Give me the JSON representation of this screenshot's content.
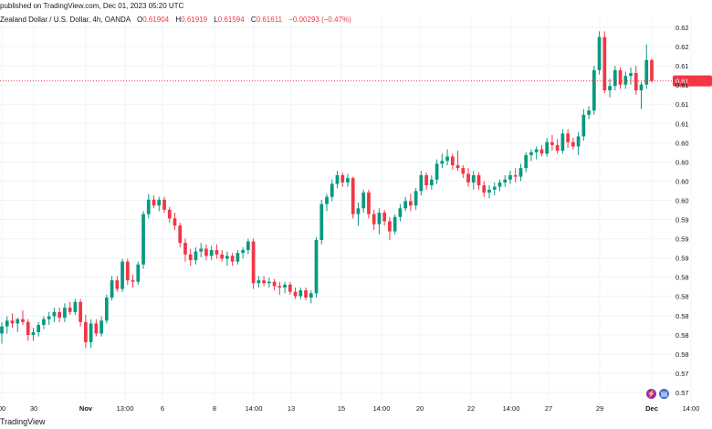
{
  "header": {
    "published": "published on TradingView.com, Dec 01, 2023 05:20 UTC",
    "symbol": "Zealand Dollar / U.S. Dollar, 4h, OANDA",
    "o_label": "O",
    "o_value": "0.61904",
    "h_label": "H",
    "h_value": "0.61919",
    "l_label": "L",
    "l_value": "0.61594",
    "c_label": "C",
    "c_value": "0.61611",
    "change": "−0.00293 (−0.47%)"
  },
  "footer": {
    "brand": "TradingView"
  },
  "colors": {
    "up": "#089981",
    "down": "#f23645",
    "grid": "#f0f3fa",
    "text": "#131722",
    "axis_text": "#131722",
    "price_line": "#f23645"
  },
  "chart_data": {
    "type": "candlestick",
    "title": "Zealand Dollar / U.S. Dollar, 4h, OANDA",
    "y_tick_labels": [
      "0.62",
      "0.62",
      "0.61",
      "0.61",
      "0.61",
      "0.61",
      "0.60",
      "0.60",
      "0.60",
      "0.60",
      "0.59",
      "0.59",
      "0.59",
      "0.58",
      "0.58",
      "0.58",
      "0.58",
      "0.58",
      "0.57",
      "0.57"
    ],
    "ylim": [
      0.5718,
      0.6238
    ],
    "x_tick_labels": [
      "00",
      "30",
      "Nov",
      "13:00",
      "6",
      "8",
      "14:00",
      "13",
      "15",
      "14:00",
      "20",
      "22",
      "14:00",
      "27",
      "29",
      "Dec",
      "14:00"
    ],
    "last_price_label": "0.61",
    "last_price": 0.61611,
    "grid": true,
    "ohlc": [
      [
        0.581,
        0.5826,
        0.5796,
        0.582
      ],
      [
        0.582,
        0.5834,
        0.581,
        0.5828
      ],
      [
        0.5828,
        0.5838,
        0.5818,
        0.5824
      ],
      [
        0.5824,
        0.5832,
        0.5812,
        0.583
      ],
      [
        0.583,
        0.5842,
        0.5822,
        0.5826
      ],
      [
        0.5826,
        0.583,
        0.58,
        0.5808
      ],
      [
        0.5808,
        0.5818,
        0.58,
        0.5812
      ],
      [
        0.5812,
        0.5826,
        0.5806,
        0.5822
      ],
      [
        0.5822,
        0.5834,
        0.5816,
        0.583
      ],
      [
        0.583,
        0.584,
        0.5822,
        0.5834
      ],
      [
        0.5834,
        0.5846,
        0.5826,
        0.584
      ],
      [
        0.584,
        0.5846,
        0.5826,
        0.5832
      ],
      [
        0.5832,
        0.5852,
        0.5826,
        0.5846
      ],
      [
        0.5846,
        0.5854,
        0.5836,
        0.584
      ],
      [
        0.584,
        0.5858,
        0.5836,
        0.5854
      ],
      [
        0.5854,
        0.5858,
        0.582,
        0.5826
      ],
      [
        0.5826,
        0.5836,
        0.579,
        0.5798
      ],
      [
        0.5798,
        0.583,
        0.579,
        0.5824
      ],
      [
        0.5824,
        0.583,
        0.5806,
        0.581
      ],
      [
        0.581,
        0.5834,
        0.5806,
        0.5828
      ],
      [
        0.5828,
        0.5864,
        0.5824,
        0.586
      ],
      [
        0.586,
        0.589,
        0.5856,
        0.5884
      ],
      [
        0.5884,
        0.589,
        0.5868,
        0.5872
      ],
      [
        0.5872,
        0.5914,
        0.5868,
        0.591
      ],
      [
        0.591,
        0.5914,
        0.5878,
        0.5884
      ],
      [
        0.5884,
        0.5892,
        0.5874,
        0.5882
      ],
      [
        0.5882,
        0.591,
        0.5878,
        0.5906
      ],
      [
        0.5906,
        0.598,
        0.59,
        0.5976
      ],
      [
        0.5976,
        0.6004,
        0.597,
        0.5996
      ],
      [
        0.5996,
        0.6002,
        0.5984,
        0.5988
      ],
      [
        0.5988,
        0.6,
        0.598,
        0.5996
      ],
      [
        0.5996,
        0.6,
        0.5978,
        0.5982
      ],
      [
        0.5982,
        0.5986,
        0.5964,
        0.597
      ],
      [
        0.597,
        0.5978,
        0.5954,
        0.596
      ],
      [
        0.596,
        0.5964,
        0.593,
        0.5936
      ],
      [
        0.5936,
        0.5942,
        0.591,
        0.592
      ],
      [
        0.592,
        0.5928,
        0.5904,
        0.5912
      ],
      [
        0.5912,
        0.593,
        0.5906,
        0.5924
      ],
      [
        0.5924,
        0.5936,
        0.5916,
        0.5928
      ],
      [
        0.5928,
        0.5934,
        0.5912,
        0.5918
      ],
      [
        0.5918,
        0.5932,
        0.5912,
        0.5926
      ],
      [
        0.5926,
        0.5934,
        0.5914,
        0.592
      ],
      [
        0.592,
        0.5926,
        0.591,
        0.5914
      ],
      [
        0.5914,
        0.5924,
        0.5904,
        0.5918
      ],
      [
        0.5918,
        0.5922,
        0.5904,
        0.591
      ],
      [
        0.591,
        0.5926,
        0.5906,
        0.5922
      ],
      [
        0.5922,
        0.593,
        0.5914,
        0.5926
      ],
      [
        0.5926,
        0.5942,
        0.592,
        0.5938
      ],
      [
        0.5938,
        0.5942,
        0.5872,
        0.588
      ],
      [
        0.588,
        0.589,
        0.5874,
        0.5884
      ],
      [
        0.5884,
        0.589,
        0.5876,
        0.588
      ],
      [
        0.588,
        0.5888,
        0.5874,
        0.5882
      ],
      [
        0.5882,
        0.5886,
        0.587,
        0.5876
      ],
      [
        0.5876,
        0.5882,
        0.5864,
        0.5874
      ],
      [
        0.5874,
        0.5882,
        0.5866,
        0.5878
      ],
      [
        0.5878,
        0.5882,
        0.5864,
        0.5868
      ],
      [
        0.5868,
        0.5874,
        0.5858,
        0.5862
      ],
      [
        0.5862,
        0.5874,
        0.5858,
        0.587
      ],
      [
        0.587,
        0.5874,
        0.5856,
        0.586
      ],
      [
        0.586,
        0.587,
        0.5852,
        0.5866
      ],
      [
        0.5866,
        0.5944,
        0.586,
        0.594
      ],
      [
        0.594,
        0.5996,
        0.5934,
        0.599
      ],
      [
        0.599,
        0.6004,
        0.598,
        0.6
      ],
      [
        0.6,
        0.6024,
        0.5994,
        0.6018
      ],
      [
        0.6018,
        0.6036,
        0.6012,
        0.603
      ],
      [
        0.603,
        0.6034,
        0.6014,
        0.602
      ],
      [
        0.602,
        0.6032,
        0.6014,
        0.6026
      ],
      [
        0.6026,
        0.6028,
        0.597,
        0.5976
      ],
      [
        0.5976,
        0.5992,
        0.596,
        0.5984
      ],
      [
        0.5984,
        0.601,
        0.5978,
        0.6006
      ],
      [
        0.6006,
        0.601,
        0.597,
        0.5976
      ],
      [
        0.5976,
        0.5982,
        0.5954,
        0.5962
      ],
      [
        0.5962,
        0.5984,
        0.5948,
        0.5978
      ],
      [
        0.5978,
        0.5982,
        0.596,
        0.5966
      ],
      [
        0.5966,
        0.5972,
        0.594,
        0.5952
      ],
      [
        0.5952,
        0.5976,
        0.5948,
        0.5972
      ],
      [
        0.5972,
        0.599,
        0.5966,
        0.5984
      ],
      [
        0.5984,
        0.6,
        0.598,
        0.5994
      ],
      [
        0.5994,
        0.6004,
        0.598,
        0.5988
      ],
      [
        0.5988,
        0.6012,
        0.5982,
        0.6008
      ],
      [
        0.6008,
        0.6036,
        0.6002,
        0.603
      ],
      [
        0.603,
        0.6034,
        0.601,
        0.6016
      ],
      [
        0.6016,
        0.603,
        0.601,
        0.6024
      ],
      [
        0.6024,
        0.6052,
        0.6018,
        0.6046
      ],
      [
        0.6046,
        0.606,
        0.604,
        0.605
      ],
      [
        0.605,
        0.6066,
        0.6044,
        0.6056
      ],
      [
        0.6056,
        0.606,
        0.6038,
        0.6044
      ],
      [
        0.6044,
        0.6064,
        0.6036,
        0.604
      ],
      [
        0.604,
        0.6044,
        0.6026,
        0.6032
      ],
      [
        0.6032,
        0.604,
        0.6014,
        0.602
      ],
      [
        0.602,
        0.6036,
        0.601,
        0.603
      ],
      [
        0.603,
        0.6034,
        0.601,
        0.6016
      ],
      [
        0.6016,
        0.6022,
        0.6,
        0.6006
      ],
      [
        0.6006,
        0.6016,
        0.5998,
        0.601
      ],
      [
        0.601,
        0.602,
        0.6002,
        0.6014
      ],
      [
        0.6014,
        0.6024,
        0.6008,
        0.602
      ],
      [
        0.602,
        0.603,
        0.6014,
        0.6024
      ],
      [
        0.6024,
        0.6036,
        0.6018,
        0.603
      ],
      [
        0.603,
        0.604,
        0.602,
        0.6028
      ],
      [
        0.6028,
        0.6046,
        0.6022,
        0.604
      ],
      [
        0.604,
        0.6062,
        0.6034,
        0.6058
      ],
      [
        0.6058,
        0.6066,
        0.605,
        0.6062
      ],
      [
        0.6062,
        0.607,
        0.6052,
        0.6066
      ],
      [
        0.6066,
        0.6072,
        0.6056,
        0.606
      ],
      [
        0.606,
        0.6082,
        0.6056,
        0.6076
      ],
      [
        0.6076,
        0.6086,
        0.6064,
        0.6072
      ],
      [
        0.6072,
        0.608,
        0.606,
        0.6064
      ],
      [
        0.6064,
        0.6094,
        0.606,
        0.6088
      ],
      [
        0.6088,
        0.6094,
        0.6068,
        0.6076
      ],
      [
        0.6076,
        0.6082,
        0.6066,
        0.607
      ],
      [
        0.607,
        0.609,
        0.6058,
        0.6084
      ],
      [
        0.6084,
        0.6122,
        0.6078,
        0.6114
      ],
      [
        0.6114,
        0.6126,
        0.6108,
        0.612
      ],
      [
        0.612,
        0.6182,
        0.6114,
        0.6176
      ],
      [
        0.6176,
        0.623,
        0.617,
        0.6222
      ],
      [
        0.6222,
        0.623,
        0.6144,
        0.6148
      ],
      [
        0.6148,
        0.6164,
        0.6138,
        0.6154
      ],
      [
        0.6154,
        0.6182,
        0.6148,
        0.6176
      ],
      [
        0.6176,
        0.618,
        0.615,
        0.6156
      ],
      [
        0.6156,
        0.6174,
        0.615,
        0.6168
      ],
      [
        0.6168,
        0.618,
        0.6156,
        0.6172
      ],
      [
        0.6172,
        0.6182,
        0.6142,
        0.6148
      ],
      [
        0.6148,
        0.616,
        0.6122,
        0.6156
      ],
      [
        0.6156,
        0.6212,
        0.615,
        0.619
      ],
      [
        0.619,
        0.6192,
        0.6159,
        0.6161
      ]
    ]
  }
}
